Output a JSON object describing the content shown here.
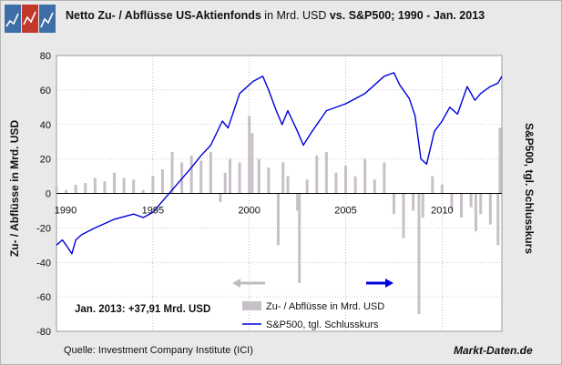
{
  "title": {
    "part1": "Netto Zu- / Abflüsse US-Aktienfonds",
    "part2": " in Mrd. USD ",
    "part3": "vs. S&P500",
    "part4": "; 1990 - Jan. 2013"
  },
  "brand": "Markt-Daten.de",
  "source": "Quelle: Investment Company Institute (ICI)",
  "note": "Jan. 2013: +37,91 Mrd. USD",
  "colors": {
    "bars": "#c8c0c8",
    "line": "#0000dd",
    "arrow_left": "#bdbdbd",
    "arrow_right": "#0000dd",
    "grid": "#9a9a9a"
  },
  "chart_data": {
    "type": "bar+line",
    "ylabel": "Zu- / Abflüsse in Mrd. USD",
    "ylabel_right": "S&P500, tgl. Schlusskurs",
    "ylim": [
      -80,
      80
    ],
    "yticks": [
      -80,
      -60,
      -40,
      -20,
      0,
      20,
      40,
      60,
      80
    ],
    "xlim": [
      1990,
      2013.1
    ],
    "xticks": [
      1990,
      1995,
      2000,
      2005,
      2010
    ],
    "xtick_labels": [
      "1990",
      "1995",
      "2000",
      "2005",
      "2010"
    ],
    "grid": true,
    "legend_position": "bottom-center",
    "series": [
      {
        "name": "Zu- / Abflüsse in Mrd. USD",
        "type": "bar",
        "x": [
          1990.0,
          1990.5,
          1991.0,
          1991.5,
          1992.0,
          1992.5,
          1993.0,
          1993.5,
          1994.0,
          1994.5,
          1995.0,
          1995.5,
          1996.0,
          1996.5,
          1997.0,
          1997.5,
          1998.0,
          1998.5,
          1998.75,
          1999.0,
          1999.5,
          2000.0,
          2000.15,
          2000.5,
          2001.0,
          2001.5,
          2001.75,
          2002.0,
          2002.5,
          2002.6,
          2003.0,
          2003.5,
          2004.0,
          2004.5,
          2005.0,
          2005.5,
          2006.0,
          2006.5,
          2007.0,
          2007.5,
          2008.0,
          2008.5,
          2008.8,
          2009.0,
          2009.5,
          2010.0,
          2010.5,
          2011.0,
          2011.5,
          2011.75,
          2012.0,
          2012.5,
          2012.9,
          2013.0
        ],
        "values": [
          4,
          2,
          5,
          6,
          9,
          7,
          12,
          9,
          8,
          2,
          10,
          14,
          24,
          18,
          22,
          19,
          24,
          -5,
          12,
          20,
          18,
          45,
          35,
          20,
          15,
          -30,
          18,
          10,
          -10,
          -52,
          8,
          22,
          24,
          12,
          16,
          10,
          20,
          8,
          18,
          -12,
          -26,
          -10,
          -70,
          -14,
          10,
          5,
          -10,
          -14,
          -8,
          -22,
          -12,
          -18,
          -30,
          38
        ]
      },
      {
        "name": "S&P500, tgl. Schlusskurs",
        "type": "line",
        "x": [
          1990.0,
          1990.3,
          1990.5,
          1990.8,
          1991.0,
          1991.3,
          1992.0,
          1993.0,
          1994.0,
          1994.5,
          1995.0,
          1996.0,
          1997.0,
          1997.5,
          1998.0,
          1998.6,
          1998.9,
          1999.5,
          2000.2,
          2000.7,
          2001.0,
          2001.4,
          2001.7,
          2002.0,
          2002.5,
          2002.8,
          2003.2,
          2004.0,
          2005.0,
          2006.0,
          2007.0,
          2007.5,
          2007.8,
          2008.3,
          2008.6,
          2008.9,
          2009.2,
          2009.6,
          2010.0,
          2010.4,
          2010.8,
          2011.3,
          2011.7,
          2012.0,
          2012.5,
          2012.9,
          2013.1
        ],
        "values": [
          -30,
          -27,
          -30,
          -35,
          -27,
          -24,
          -20,
          -15,
          -12,
          -14,
          -11,
          2,
          15,
          22,
          28,
          42,
          38,
          58,
          65,
          68,
          60,
          48,
          40,
          48,
          36,
          28,
          35,
          48,
          52,
          58,
          68,
          70,
          63,
          55,
          45,
          20,
          17,
          36,
          42,
          50,
          46,
          62,
          54,
          58,
          62,
          64,
          68
        ]
      }
    ]
  }
}
